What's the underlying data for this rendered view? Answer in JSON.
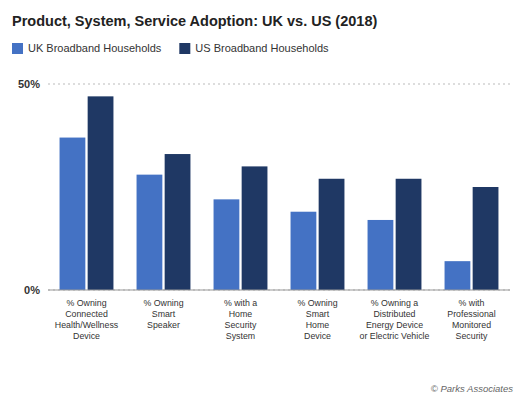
{
  "chart_data": {
    "type": "bar",
    "title": "Product, System, Service Adoption: UK vs. US (2018)",
    "categories": [
      "% Owning\nConnected\nHealth/Wellness\nDevice",
      "% Owning\nSmart\nSpeaker",
      "% with a\nHome\nSecurity\nSystem",
      "% Owning\nSmart\nHome\nDevice",
      "% Owning a\nDistributed\nEnergy Device\nor Electric Vehicle",
      "% with\nProfessional\nMonitored\nSecurity"
    ],
    "series": [
      {
        "name": "UK Broadband Households",
        "color": "#4472c4",
        "values": [
          37,
          28,
          22,
          19,
          17,
          7
        ]
      },
      {
        "name": "US Broadband Households",
        "color": "#1f3864",
        "values": [
          47,
          33,
          30,
          27,
          27,
          25
        ]
      }
    ],
    "ylim": [
      0,
      50
    ],
    "yticks": [
      {
        "value": 0,
        "label": "0%"
      },
      {
        "value": 50,
        "label": "50%"
      }
    ],
    "grid": true,
    "legend": "top",
    "annotations": [
      "© Parks Associates"
    ]
  }
}
